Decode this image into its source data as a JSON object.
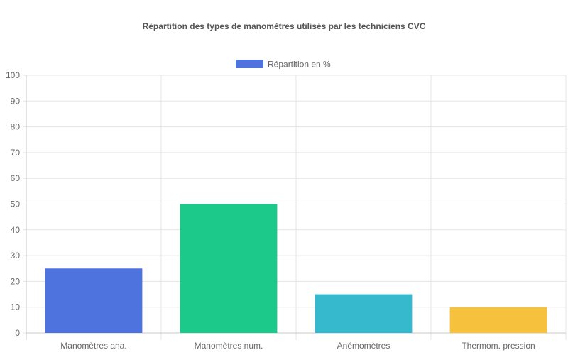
{
  "chart_data": {
    "type": "bar",
    "title": "Répartition des types de manomètres utilisés par les techniciens CVC",
    "legend_position": "top-center",
    "grid": true,
    "categories": [
      "Manomètres ana.",
      "Manomètres num.",
      "Anémomètres",
      "Thermom. pression"
    ],
    "series": [
      {
        "name": "Répartition en %",
        "values": [
          25,
          50,
          15,
          10
        ],
        "colors": [
          "#4e73df",
          "#1cc88a",
          "#36b9cc",
          "#f6c23e"
        ],
        "legend_color": "#4e73df"
      }
    ],
    "ylim": [
      0,
      100
    ],
    "yticks": [
      "0",
      "10",
      "20",
      "30",
      "40",
      "50",
      "60",
      "70",
      "80",
      "90",
      "100"
    ]
  }
}
